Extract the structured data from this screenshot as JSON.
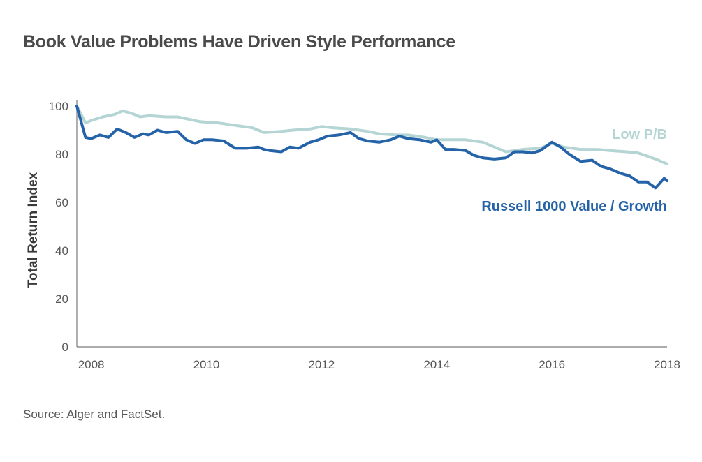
{
  "header": {
    "title": "Book Value Problems Have Driven Style Performance"
  },
  "footer": {
    "source": "Source: Alger and  FactSet."
  },
  "chart_data": {
    "type": "line",
    "title": "Book Value Problems Have Driven Style Performance",
    "xlabel": "",
    "ylabel": "Total Return Index",
    "xlim": [
      2007.75,
      2018.0
    ],
    "ylim": [
      0,
      100
    ],
    "x_ticks": [
      2008,
      2010,
      2012,
      2014,
      2016,
      2018
    ],
    "y_ticks": [
      0,
      20,
      40,
      60,
      80,
      100
    ],
    "grid": false,
    "legend": "inline labels at right",
    "series": [
      {
        "name": "Low P/B",
        "color": "#b5d5d5",
        "x": [
          2007.75,
          2007.9,
          2008.0,
          2008.2,
          2008.4,
          2008.55,
          2008.7,
          2008.85,
          2009.0,
          2009.3,
          2009.5,
          2009.7,
          2009.9,
          2010.2,
          2010.5,
          2010.8,
          2011.0,
          2011.3,
          2011.5,
          2011.8,
          2012.0,
          2012.2,
          2012.5,
          2012.8,
          2013.0,
          2013.3,
          2013.5,
          2013.8,
          2014.0,
          2014.2,
          2014.5,
          2014.8,
          2015.0,
          2015.2,
          2015.5,
          2015.8,
          2016.0,
          2016.2,
          2016.5,
          2016.8,
          2017.0,
          2017.3,
          2017.5,
          2017.8,
          2018.0
        ],
        "values": [
          100,
          93,
          94,
          95.5,
          96.5,
          98,
          97,
          95.5,
          96,
          95.5,
          95.5,
          94.5,
          93.5,
          93,
          92,
          91,
          89,
          89.5,
          90,
          90.5,
          91.5,
          91,
          90.5,
          89.5,
          88.5,
          88,
          88,
          87,
          86,
          86,
          86,
          85,
          83,
          81,
          82,
          82.5,
          84.5,
          83,
          82,
          82,
          81.5,
          81,
          80.5,
          78,
          76
        ]
      },
      {
        "name": "Russell 1000 Value / Growth",
        "color": "#2563a8",
        "x": [
          2007.75,
          2007.9,
          2008.0,
          2008.15,
          2008.3,
          2008.45,
          2008.6,
          2008.75,
          2008.9,
          2009.0,
          2009.15,
          2009.3,
          2009.5,
          2009.65,
          2009.8,
          2009.95,
          2010.1,
          2010.3,
          2010.5,
          2010.7,
          2010.9,
          2011.0,
          2011.1,
          2011.3,
          2011.45,
          2011.6,
          2011.8,
          2011.95,
          2012.1,
          2012.3,
          2012.5,
          2012.65,
          2012.8,
          2013.0,
          2013.2,
          2013.35,
          2013.5,
          2013.7,
          2013.9,
          2014.0,
          2014.15,
          2014.3,
          2014.5,
          2014.65,
          2014.8,
          2015.0,
          2015.2,
          2015.35,
          2015.5,
          2015.65,
          2015.8,
          2016.0,
          2016.15,
          2016.3,
          2016.5,
          2016.7,
          2016.85,
          2017.0,
          2017.2,
          2017.35,
          2017.5,
          2017.65,
          2017.8,
          2017.95,
          2018.0
        ],
        "values": [
          100,
          87,
          86.5,
          88,
          87,
          90.5,
          89,
          87,
          88.5,
          88,
          90,
          89,
          89.5,
          86,
          84.5,
          86,
          86,
          85.5,
          82.5,
          82.5,
          83,
          82,
          81.5,
          81,
          83,
          82.5,
          85,
          86,
          87.5,
          88,
          89,
          86.5,
          85.5,
          85,
          86,
          87.5,
          86.5,
          86,
          85,
          86,
          82,
          82,
          81.5,
          79.5,
          78.5,
          78,
          78.5,
          81,
          81,
          80.5,
          81.5,
          85,
          83,
          80,
          77,
          77.5,
          75,
          74,
          72,
          71,
          68.5,
          68.5,
          66,
          70,
          69
        ]
      }
    ]
  }
}
